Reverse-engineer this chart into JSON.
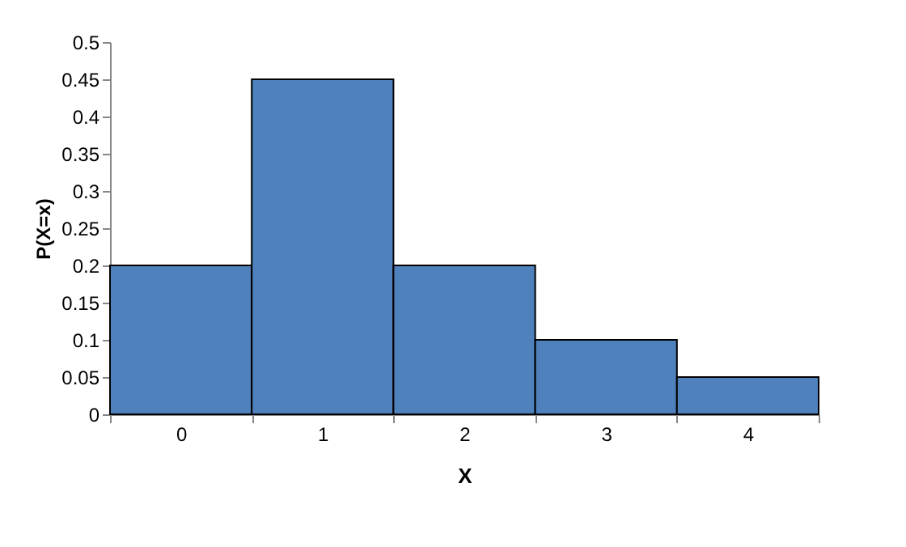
{
  "chart_data": {
    "type": "bar",
    "xlabel": "X",
    "ylabel": "P(X=x)",
    "categories": [
      "0",
      "1",
      "2",
      "3",
      "4"
    ],
    "values": [
      0.2,
      0.45,
      0.2,
      0.1,
      0.05
    ],
    "color": "#4f81bd",
    "ylim": [
      0,
      0.5
    ],
    "yticks": [
      0,
      0.05,
      0.1,
      0.15,
      0.2,
      0.25,
      0.3,
      0.35,
      0.4,
      0.45,
      0.5
    ],
    "grid": false
  }
}
